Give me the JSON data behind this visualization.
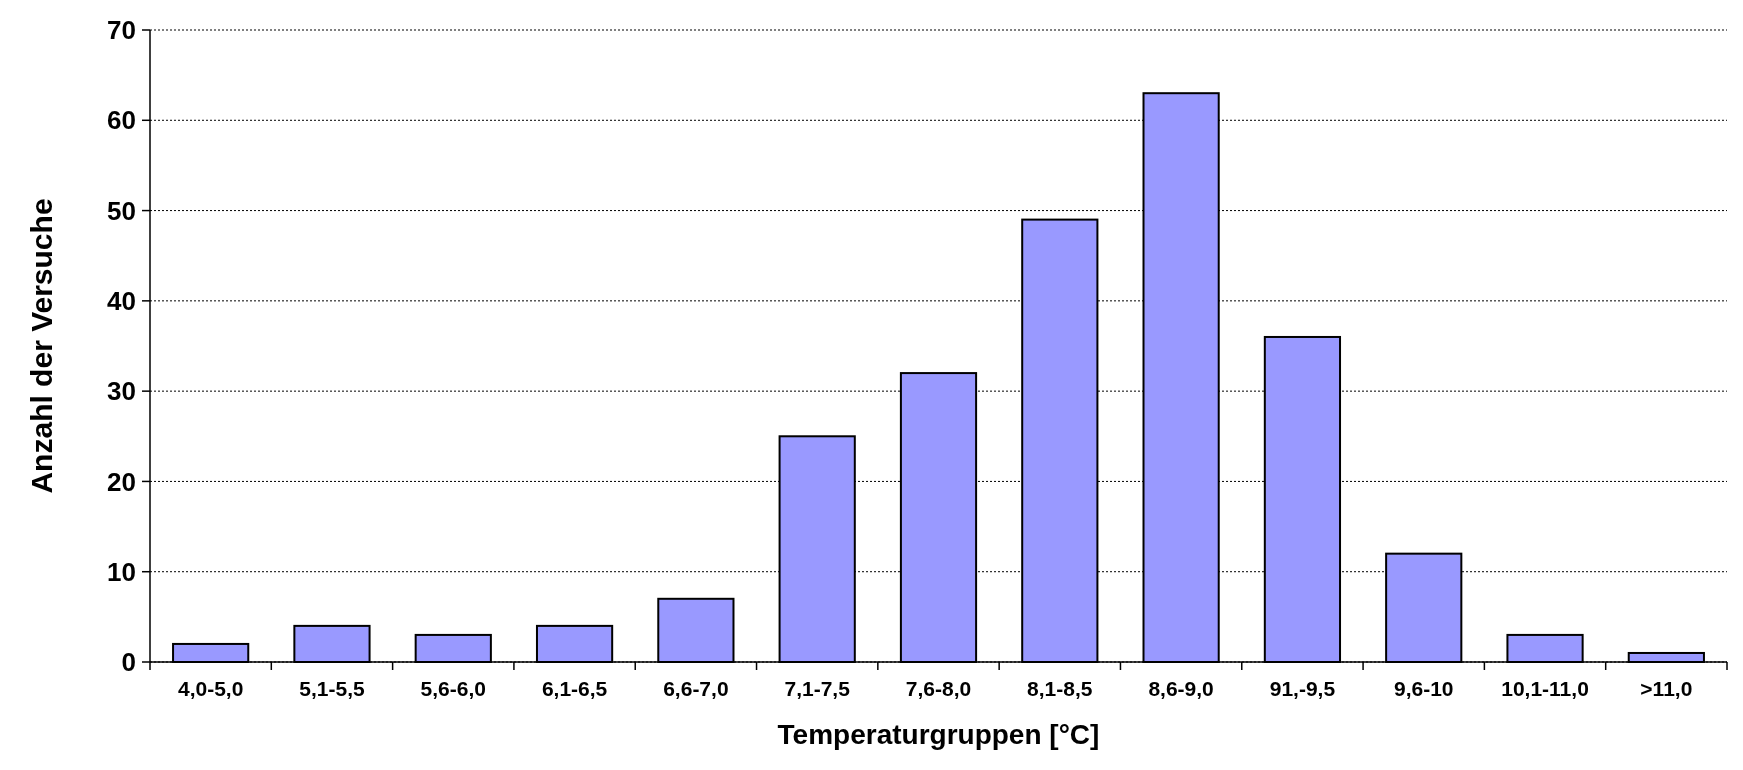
{
  "chart_data": {
    "type": "bar",
    "xlabel": "Temperaturgruppen [°C]",
    "ylabel": "Anzahl der Versuche",
    "categories": [
      "4,0-5,0",
      "5,1-5,5",
      "5,6-6,0",
      "6,1-6,5",
      "6,6-7,0",
      "7,1-7,5",
      "7,6-8,0",
      "8,1-8,5",
      "8,6-9,0",
      "91,-9,5",
      "9,6-10",
      "10,1-11,0",
      ">11,0"
    ],
    "values": [
      2,
      4,
      3,
      4,
      7,
      25,
      32,
      49,
      63,
      36,
      12,
      3,
      1
    ],
    "color": "#9999ff",
    "ylim": [
      0,
      70
    ],
    "yticks": [
      0,
      10,
      20,
      30,
      40,
      50,
      60,
      70
    ],
    "grid": "y"
  }
}
